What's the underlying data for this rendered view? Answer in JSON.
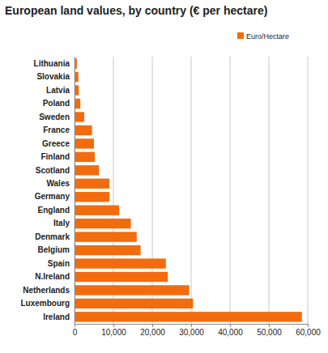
{
  "chart_data": {
    "type": "bar",
    "title": "European land values, by country (€ per hectare)",
    "orientation": "horizontal",
    "categories": [
      "Lithuania",
      "Slovakia",
      "Latvia",
      "Poland",
      "Sweden",
      "France",
      "Greece",
      "Finland",
      "Scotland",
      "Wales",
      "Germany",
      "England",
      "Italy",
      "Denmark",
      "Belgium",
      "Spain",
      "N.Ireland",
      "Netherlands",
      "Luxembourg",
      "Ireland"
    ],
    "series": [
      {
        "name": "Euro/Hectare",
        "color": "#f26c0d",
        "values": [
          600,
          1000,
          1100,
          1500,
          2500,
          4500,
          5000,
          5200,
          6300,
          9000,
          9000,
          11500,
          14500,
          16000,
          17000,
          23500,
          24000,
          29500,
          30500,
          58500
        ]
      }
    ],
    "xlim": [
      0,
      60000
    ],
    "xticks": [
      0,
      {
        "value": 10000,
        "label": "10,000"
      },
      {
        "value": 20000,
        "label": "20,000"
      },
      {
        "value": 30000,
        "label": "30,000"
      },
      {
        "value": 40000,
        "label": "40,000"
      },
      {
        "value": 50000,
        "label": "50,000"
      },
      {
        "value": 60000,
        "label": "60,000"
      }
    ],
    "grid": true,
    "legend": "top-right"
  }
}
